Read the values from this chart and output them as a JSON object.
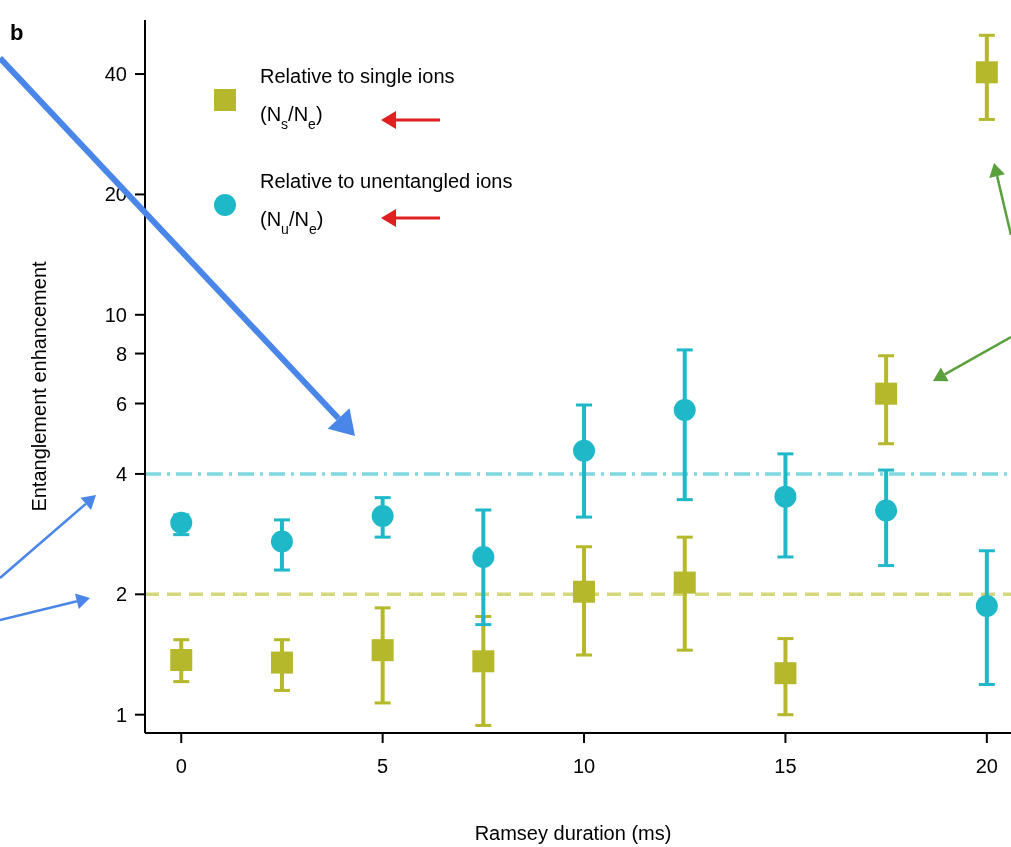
{
  "chart_data": {
    "type": "scatter",
    "xlabel": "Ramsey duration (ms)",
    "ylabel": "Entanglement enhancement",
    "annotations": [
      "b"
    ],
    "log": "y",
    "grid": false,
    "legend": "top left",
    "xlim": [
      -0.9,
      20.6
    ],
    "xticks": [
      0,
      5,
      10,
      15,
      20
    ],
    "ylim": [
      0.9,
      54.6
    ],
    "yticks": [
      1,
      2,
      4,
      6,
      8,
      10,
      20,
      40
    ],
    "x": [
      0,
      2.5,
      5,
      7.5,
      10,
      12.5,
      15,
      17.5,
      20
    ],
    "series": [
      {
        "name": "Relative to single ions\n(N$_{s}$/N$_{e}$)",
        "color": "#b5b82a",
        "marker": "square",
        "values": [
          1.37,
          1.35,
          1.45,
          1.36,
          2.03,
          2.14,
          1.27,
          6.35,
          40.4
        ],
        "errors": [
          [
            1.21,
            1.54
          ],
          [
            1.15,
            1.54
          ],
          [
            1.07,
            1.85
          ],
          [
            0.94,
            1.76
          ],
          [
            1.41,
            2.63
          ],
          [
            1.45,
            2.78
          ],
          [
            1.0,
            1.55
          ],
          [
            4.76,
            7.9
          ],
          [
            30.8,
            50
          ]
        ]
      },
      {
        "name": "Relative to unentangled ions\n(N$_{u}$/N$_{e}$)",
        "color": "#1fb8c8",
        "marker": "circle",
        "values": [
          3.02,
          2.71,
          3.14,
          2.48,
          4.57,
          5.78,
          3.51,
          3.24,
          1.87
        ],
        "errors": [
          [
            2.82,
            3.16
          ],
          [
            2.3,
            3.07
          ],
          [
            2.78,
            3.49
          ],
          [
            1.68,
            3.25
          ],
          [
            3.12,
            5.95
          ],
          [
            3.45,
            8.17
          ],
          [
            2.48,
            4.49
          ],
          [
            2.36,
            4.09
          ],
          [
            1.19,
            2.57
          ]
        ]
      }
    ],
    "ref_lines": [
      {
        "axis": "y",
        "value": 4,
        "color": "#7fd8e0",
        "line_style": "dashdot"
      },
      {
        "axis": "y",
        "value": 2,
        "color": "#d5d87a",
        "line_style": "dashed"
      }
    ]
  }
}
